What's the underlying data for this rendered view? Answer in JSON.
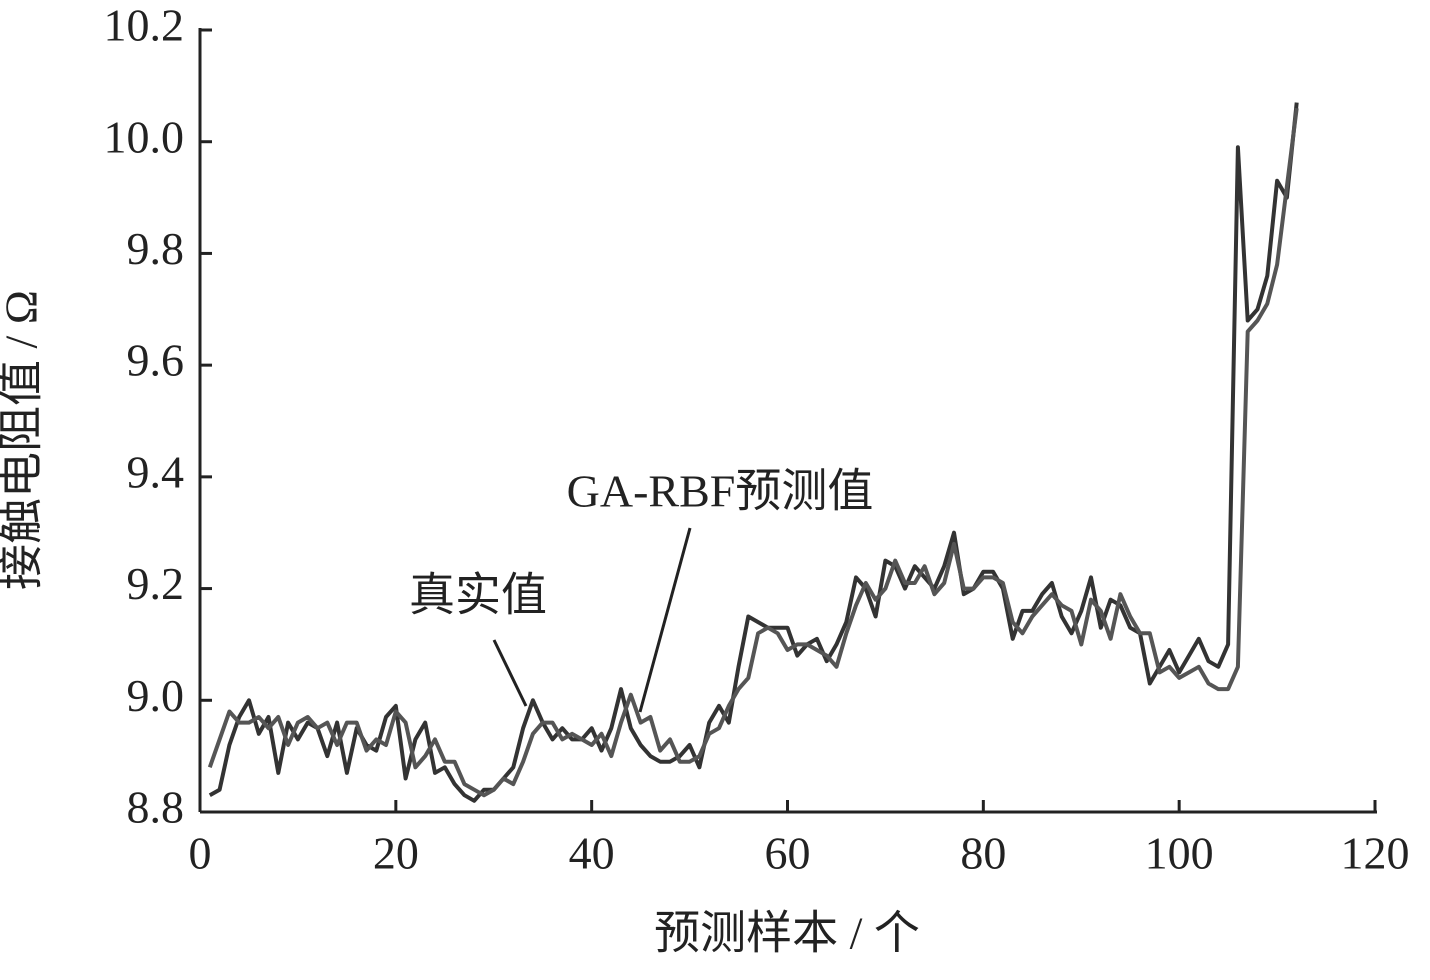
{
  "chart_data": {
    "type": "line",
    "x_label": "预测样本 / 个",
    "y_label": "接触电阻值 / Ω",
    "annotations": [
      "GA-RBF预测值",
      "真实值"
    ],
    "xlim": [
      0,
      120
    ],
    "xticks": [
      0,
      20,
      40,
      60,
      80,
      100,
      120
    ],
    "ylim": [
      8.8,
      10.2
    ],
    "yticks": [
      8.8,
      {
        "value": 9,
        "label": "9.0"
      },
      9.2,
      9.4,
      9.6,
      9.8,
      {
        "value": 10,
        "label": "10.0"
      },
      10.2
    ],
    "x": [
      1,
      2,
      3,
      4,
      5,
      6,
      7,
      8,
      9,
      10,
      11,
      12,
      13,
      14,
      15,
      16,
      17,
      18,
      19,
      20,
      21,
      22,
      23,
      24,
      25,
      26,
      27,
      28,
      29,
      30,
      31,
      32,
      33,
      34,
      35,
      36,
      37,
      38,
      39,
      40,
      41,
      42,
      43,
      44,
      45,
      46,
      47,
      48,
      49,
      50,
      51,
      52,
      53,
      54,
      55,
      56,
      57,
      58,
      59,
      60,
      61,
      62,
      63,
      64,
      65,
      66,
      67,
      68,
      69,
      70,
      71,
      72,
      73,
      74,
      75,
      76,
      77,
      78,
      79,
      80,
      81,
      82,
      83,
      84,
      85,
      86,
      87,
      88,
      89,
      90,
      91,
      92,
      93,
      94,
      95,
      96,
      97,
      98,
      99,
      100,
      101,
      102,
      103,
      104,
      105,
      106,
      107,
      108,
      109,
      110,
      111,
      112
    ],
    "series": [
      {
        "name": "真实值",
        "color": "#333333",
        "values": [
          8.83,
          8.84,
          8.92,
          8.97,
          9.0,
          8.94,
          8.97,
          8.87,
          8.96,
          8.93,
          8.96,
          8.95,
          8.9,
          8.96,
          8.87,
          8.95,
          8.92,
          8.91,
          8.97,
          8.99,
          8.86,
          8.93,
          8.96,
          8.87,
          8.88,
          8.85,
          8.83,
          8.82,
          8.84,
          8.84,
          8.86,
          8.88,
          8.95,
          9.0,
          8.96,
          8.93,
          8.95,
          8.93,
          8.93,
          8.95,
          8.91,
          8.95,
          9.02,
          8.95,
          8.92,
          8.9,
          8.89,
          8.89,
          8.9,
          8.92,
          8.88,
          8.96,
          8.99,
          8.96,
          9.06,
          9.15,
          9.14,
          9.13,
          9.13,
          9.13,
          9.08,
          9.1,
          9.11,
          9.07,
          9.1,
          9.14,
          9.22,
          9.2,
          9.15,
          9.25,
          9.24,
          9.2,
          9.24,
          9.22,
          9.2,
          9.24,
          9.3,
          9.19,
          9.2,
          9.23,
          9.23,
          9.2,
          9.11,
          9.16,
          9.16,
          9.19,
          9.21,
          9.15,
          9.12,
          9.16,
          9.22,
          9.13,
          9.18,
          9.17,
          9.13,
          9.12,
          9.03,
          9.06,
          9.09,
          9.05,
          9.08,
          9.11,
          9.07,
          9.06,
          9.1,
          9.99,
          9.68,
          9.7,
          9.76,
          9.93,
          9.9,
          10.07
        ]
      },
      {
        "name": "GA-RBF预测值",
        "color": "#555555",
        "values": [
          8.88,
          8.93,
          8.98,
          8.96,
          8.96,
          8.97,
          8.95,
          8.97,
          8.92,
          8.96,
          8.97,
          8.95,
          8.96,
          8.92,
          8.96,
          8.96,
          8.91,
          8.93,
          8.92,
          8.98,
          8.96,
          8.88,
          8.9,
          8.93,
          8.89,
          8.89,
          8.85,
          8.84,
          8.83,
          8.84,
          8.86,
          8.85,
          8.89,
          8.94,
          8.96,
          8.96,
          8.93,
          8.94,
          8.93,
          8.92,
          8.94,
          8.9,
          8.96,
          9.01,
          8.96,
          8.97,
          8.91,
          8.93,
          8.89,
          8.89,
          8.9,
          8.94,
          8.95,
          8.99,
          9.02,
          9.04,
          9.12,
          9.13,
          9.12,
          9.09,
          9.1,
          9.1,
          9.09,
          9.08,
          9.06,
          9.12,
          9.17,
          9.21,
          9.18,
          9.2,
          9.25,
          9.21,
          9.21,
          9.24,
          9.19,
          9.21,
          9.28,
          9.2,
          9.2,
          9.22,
          9.22,
          9.21,
          9.14,
          9.12,
          9.15,
          9.17,
          9.19,
          9.17,
          9.16,
          9.1,
          9.18,
          9.16,
          9.11,
          9.19,
          9.15,
          9.12,
          9.12,
          9.05,
          9.06,
          9.04,
          9.05,
          9.06,
          9.03,
          9.02,
          9.02,
          9.06,
          9.66,
          9.68,
          9.71,
          9.78,
          9.92,
          10.06
        ]
      }
    ]
  }
}
